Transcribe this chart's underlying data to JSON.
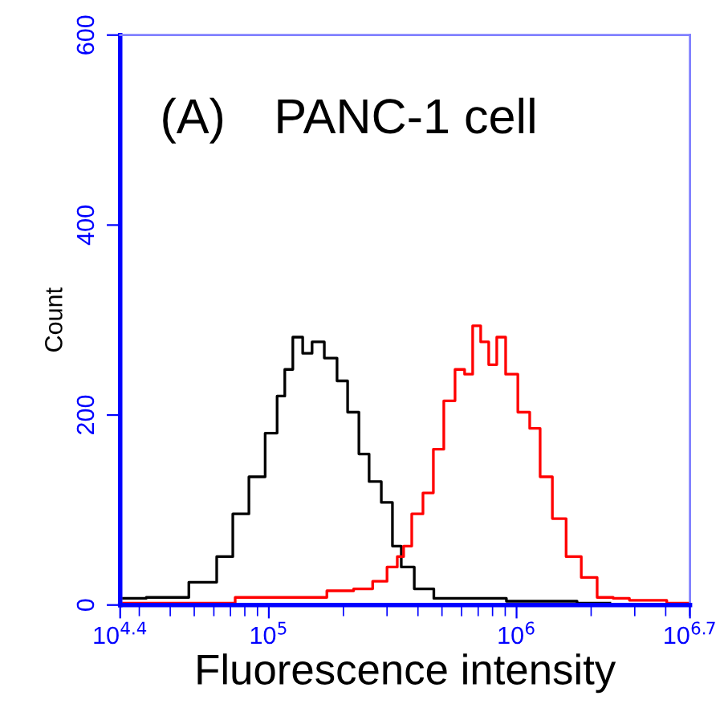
{
  "chart_data": {
    "type": "step",
    "xlabel": "Fluorescence intensity",
    "ylabel": "Count",
    "annotations": [
      "(A)",
      "PANC-1 cell"
    ],
    "log": "x",
    "xlim": [
      25119,
      5011872
    ],
    "xticks": [
      {
        "value": 25119,
        "label": "10$^{4.4}$"
      },
      {
        "value": 100000,
        "label": "10$^{5}$"
      },
      {
        "value": 1000000,
        "label": "10$^{6}$"
      },
      {
        "value": 5011872,
        "label": "10$^{6.7}$"
      }
    ],
    "ylim": [
      0,
      600
    ],
    "yticks": [
      0,
      200,
      400,
      600
    ],
    "grid": false,
    "legend": false,
    "series": [
      {
        "color": "#000000",
        "x": [
          25900,
          38100,
          57000,
          66200,
          76900,
          89300,
          104000,
          112000,
          120000,
          130000,
          144000,
          155000,
          180000,
          197000,
          219000,
          243000,
          265000,
          304000,
          327000,
          358000,
          415000,
          512000,
          690000,
          1130000,
          2380000
        ],
        "values": [
          7,
          8,
          24,
          51,
          96,
          135,
          181,
          220,
          248,
          282,
          265,
          277,
          260,
          236,
          203,
          159,
          130,
          108,
          62,
          40,
          17,
          7,
          7,
          4,
          2
        ]
      },
      {
        "color": "#ff0000",
        "x": [
          25900,
          57000,
          89300,
          146000,
          197000,
          243000,
          282000,
          318000,
          342000,
          358000,
          397000,
          441000,
          482000,
          535000,
          594000,
          640000,
          690000,
          743000,
          801000,
          863000,
          944000,
          1080000,
          1180000,
          1310000,
          1480000,
          1690000,
          1960000,
          2270000,
          2640000,
          3070000,
          5010000
        ],
        "values": [
          2,
          2,
          8,
          8,
          15,
          17,
          25,
          40,
          51,
          62,
          96,
          118,
          164,
          215,
          248,
          243,
          294,
          277,
          253,
          282,
          243,
          203,
          186,
          135,
          91,
          51,
          29,
          8,
          7,
          5,
          2
        ]
      }
    ]
  }
}
